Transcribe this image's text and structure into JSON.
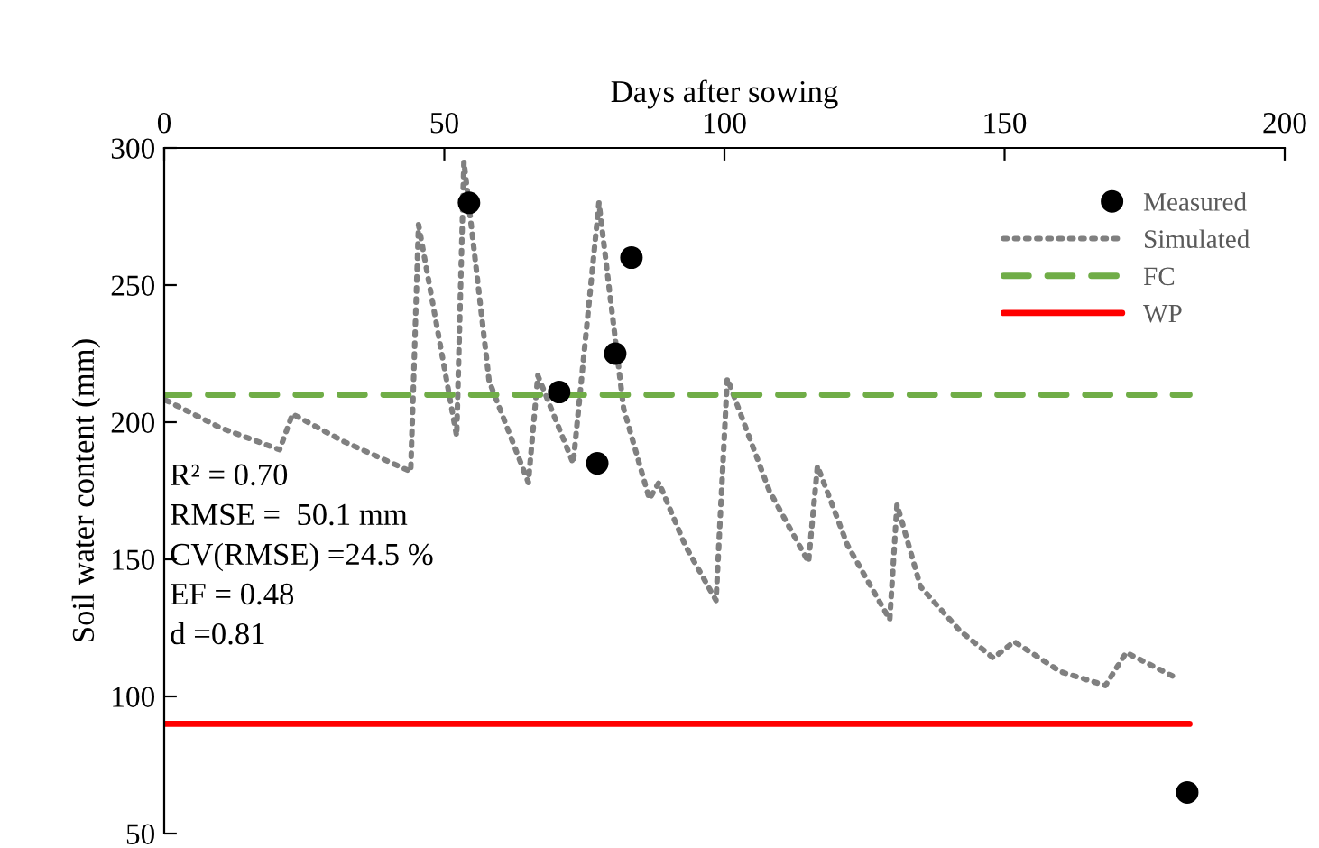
{
  "chart_data": {
    "type": "line",
    "xlabel": "Days after sowing",
    "ylabel": "Soil water content (mm)",
    "xlim": [
      0,
      200
    ],
    "xticks": [
      0,
      50,
      100,
      150,
      200
    ],
    "ylim": [
      50,
      300
    ],
    "yticks": [
      50,
      100,
      150,
      200,
      250,
      300
    ],
    "grid": false,
    "legend": "top right",
    "series": [
      {
        "name": "Measured",
        "type": "scatter",
        "color": "#000000",
        "marker": "circle",
        "x": [
          54.4,
          70.5,
          77.3,
          80.5,
          83.4,
          182.6
        ],
        "values": [
          280,
          211,
          185,
          225,
          260,
          65
        ]
      },
      {
        "name": "Simulated",
        "color": "#808080",
        "line_style": "dotted",
        "marker": "none",
        "x": [
          0.3,
          10,
          20.6,
          22.9,
          32,
          44,
          45.4,
          52.2,
          53.5,
          58,
          65,
          66.7,
          73,
          77.6,
          82,
          86.6,
          88.3,
          93,
          98.5,
          100.5,
          108,
          115,
          116.6,
          122,
          129.5,
          130.8,
          135,
          142,
          148,
          151.7,
          160,
          168,
          171.7,
          180.4
        ],
        "values": [
          208,
          198,
          190,
          203,
          193,
          182,
          272,
          195,
          295,
          215,
          178,
          217,
          185,
          280,
          205,
          172,
          178,
          155,
          135,
          216,
          175,
          149,
          184,
          155,
          128,
          170,
          140,
          124,
          114,
          120,
          109,
          104,
          116,
          107
        ]
      },
      {
        "name": "FC",
        "color": "#70ad47",
        "line_style": "dashed",
        "marker": "none",
        "x": [
          0,
          183
        ],
        "values": [
          210,
          210
        ]
      },
      {
        "name": "WP",
        "color": "#ff0000",
        "line_style": "solid",
        "marker": "none",
        "x": [
          0,
          183
        ],
        "values": [
          90,
          90
        ]
      }
    ],
    "annotations": [
      "R² = 0.70",
      "RMSE =  50.1 mm",
      "CV(RMSE) =24.5 %",
      "EF = 0.48",
      "d =0.81"
    ]
  }
}
